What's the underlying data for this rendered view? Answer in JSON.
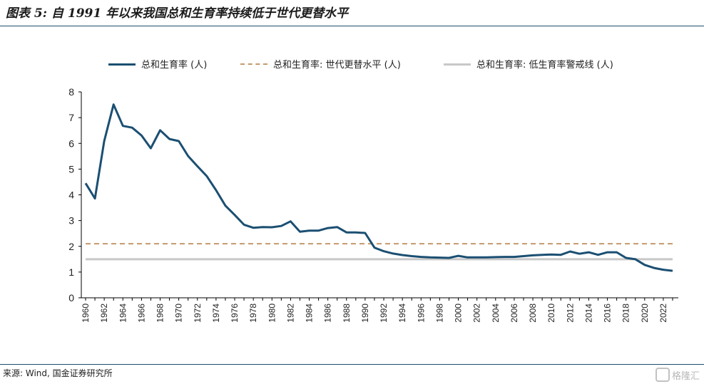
{
  "title": "图表 5: 自 1991 年以来我国总和生育率持续低于世代更替水平",
  "source": "来源: Wind, 国金证券研究所",
  "watermark": "格隆汇",
  "colors": {
    "tfr": "#1b4f72",
    "replacement": "#c49a6c",
    "warning": "#c8c8c8",
    "rule": "#1d4e6e"
  },
  "chart_data": {
    "type": "line",
    "title": "",
    "xlabel": "",
    "ylabel": "",
    "ylim": [
      0,
      8
    ],
    "yticks": [
      0,
      1,
      2,
      3,
      4,
      5,
      6,
      7,
      8
    ],
    "xlim": [
      1960,
      2023
    ],
    "xticks": [
      "1960",
      "1962",
      "1964",
      "1966",
      "1968",
      "1970",
      "1972",
      "1974",
      "1976",
      "1978",
      "1980",
      "1982",
      "1984",
      "1986",
      "1988",
      "1990",
      "1992",
      "1994",
      "1996",
      "1998",
      "2000",
      "2002",
      "2004",
      "2006",
      "2008",
      "2010",
      "2012",
      "2014",
      "2016",
      "2018",
      "2020",
      "2022"
    ],
    "grid": false,
    "legend": "top",
    "x": [
      1960,
      1961,
      1962,
      1963,
      1964,
      1965,
      1966,
      1967,
      1968,
      1969,
      1970,
      1971,
      1972,
      1973,
      1974,
      1975,
      1976,
      1977,
      1978,
      1979,
      1980,
      1981,
      1982,
      1983,
      1984,
      1985,
      1986,
      1987,
      1988,
      1989,
      1990,
      1991,
      1992,
      1993,
      1994,
      1995,
      1996,
      1997,
      1998,
      1999,
      2000,
      2001,
      2002,
      2003,
      2004,
      2005,
      2006,
      2007,
      2008,
      2009,
      2010,
      2011,
      2012,
      2013,
      2014,
      2015,
      2016,
      2017,
      2018,
      2019,
      2020,
      2021,
      2022,
      2023
    ],
    "series": [
      {
        "name": "总和生育率 (人)",
        "style": "solid",
        "values": [
          4.45,
          3.86,
          6.09,
          7.51,
          6.68,
          6.61,
          6.31,
          5.81,
          6.51,
          6.17,
          6.09,
          5.51,
          5.11,
          4.73,
          4.18,
          3.58,
          3.22,
          2.84,
          2.72,
          2.75,
          2.74,
          2.79,
          2.97,
          2.57,
          2.61,
          2.61,
          2.71,
          2.75,
          2.54,
          2.54,
          2.52,
          1.95,
          1.81,
          1.72,
          1.66,
          1.62,
          1.59,
          1.57,
          1.56,
          1.55,
          1.63,
          1.57,
          1.57,
          1.57,
          1.58,
          1.59,
          1.59,
          1.62,
          1.65,
          1.67,
          1.68,
          1.67,
          1.8,
          1.71,
          1.77,
          1.67,
          1.77,
          1.77,
          1.55,
          1.5,
          1.28,
          1.16,
          1.09,
          1.05
        ]
      },
      {
        "name": "总和生育率: 世代更替水平 (人)",
        "style": "dashed",
        "constant": 2.1
      },
      {
        "name": "总和生育率: 低生育率警戒线 (人)",
        "style": "solid-light",
        "constant": 1.5
      }
    ]
  }
}
